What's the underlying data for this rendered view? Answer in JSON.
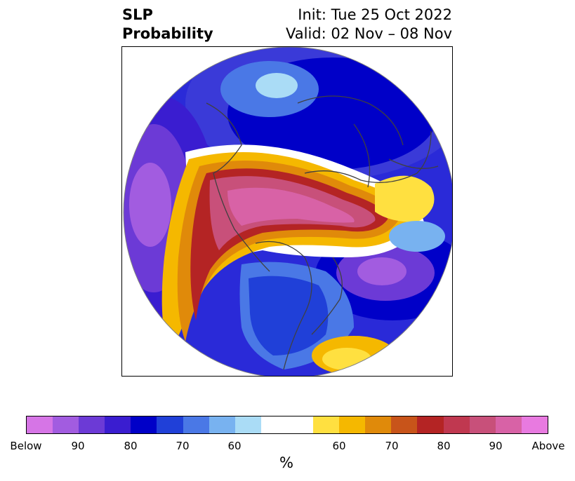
{
  "title": {
    "left_line1": "SLP",
    "left_line2": "Probability",
    "right_line1": "Init: Tue 25 Oct 2022",
    "right_line2": "Valid: 02 Nov – 08 Nov"
  },
  "map": {
    "projection": "polar stereographic (north)",
    "coastlines": true,
    "borders": true
  },
  "colorbar": {
    "colors": [
      "#d675e6",
      "#a25ce0",
      "#6c3ad6",
      "#3a1dd0",
      "#0000c8",
      "#2040d8",
      "#4a78e6",
      "#78b2f0",
      "#aadcf6",
      "#ffffff",
      "#ffe040",
      "#f5b800",
      "#e08a0a",
      "#c8541a",
      "#b42424",
      "#c03850",
      "#c8507a",
      "#d862a6",
      "#e87ae0"
    ],
    "tick_labels": [
      "Below",
      "90",
      "80",
      "70",
      "60",
      "60",
      "70",
      "80",
      "90",
      "Above"
    ],
    "unit": "%"
  }
}
